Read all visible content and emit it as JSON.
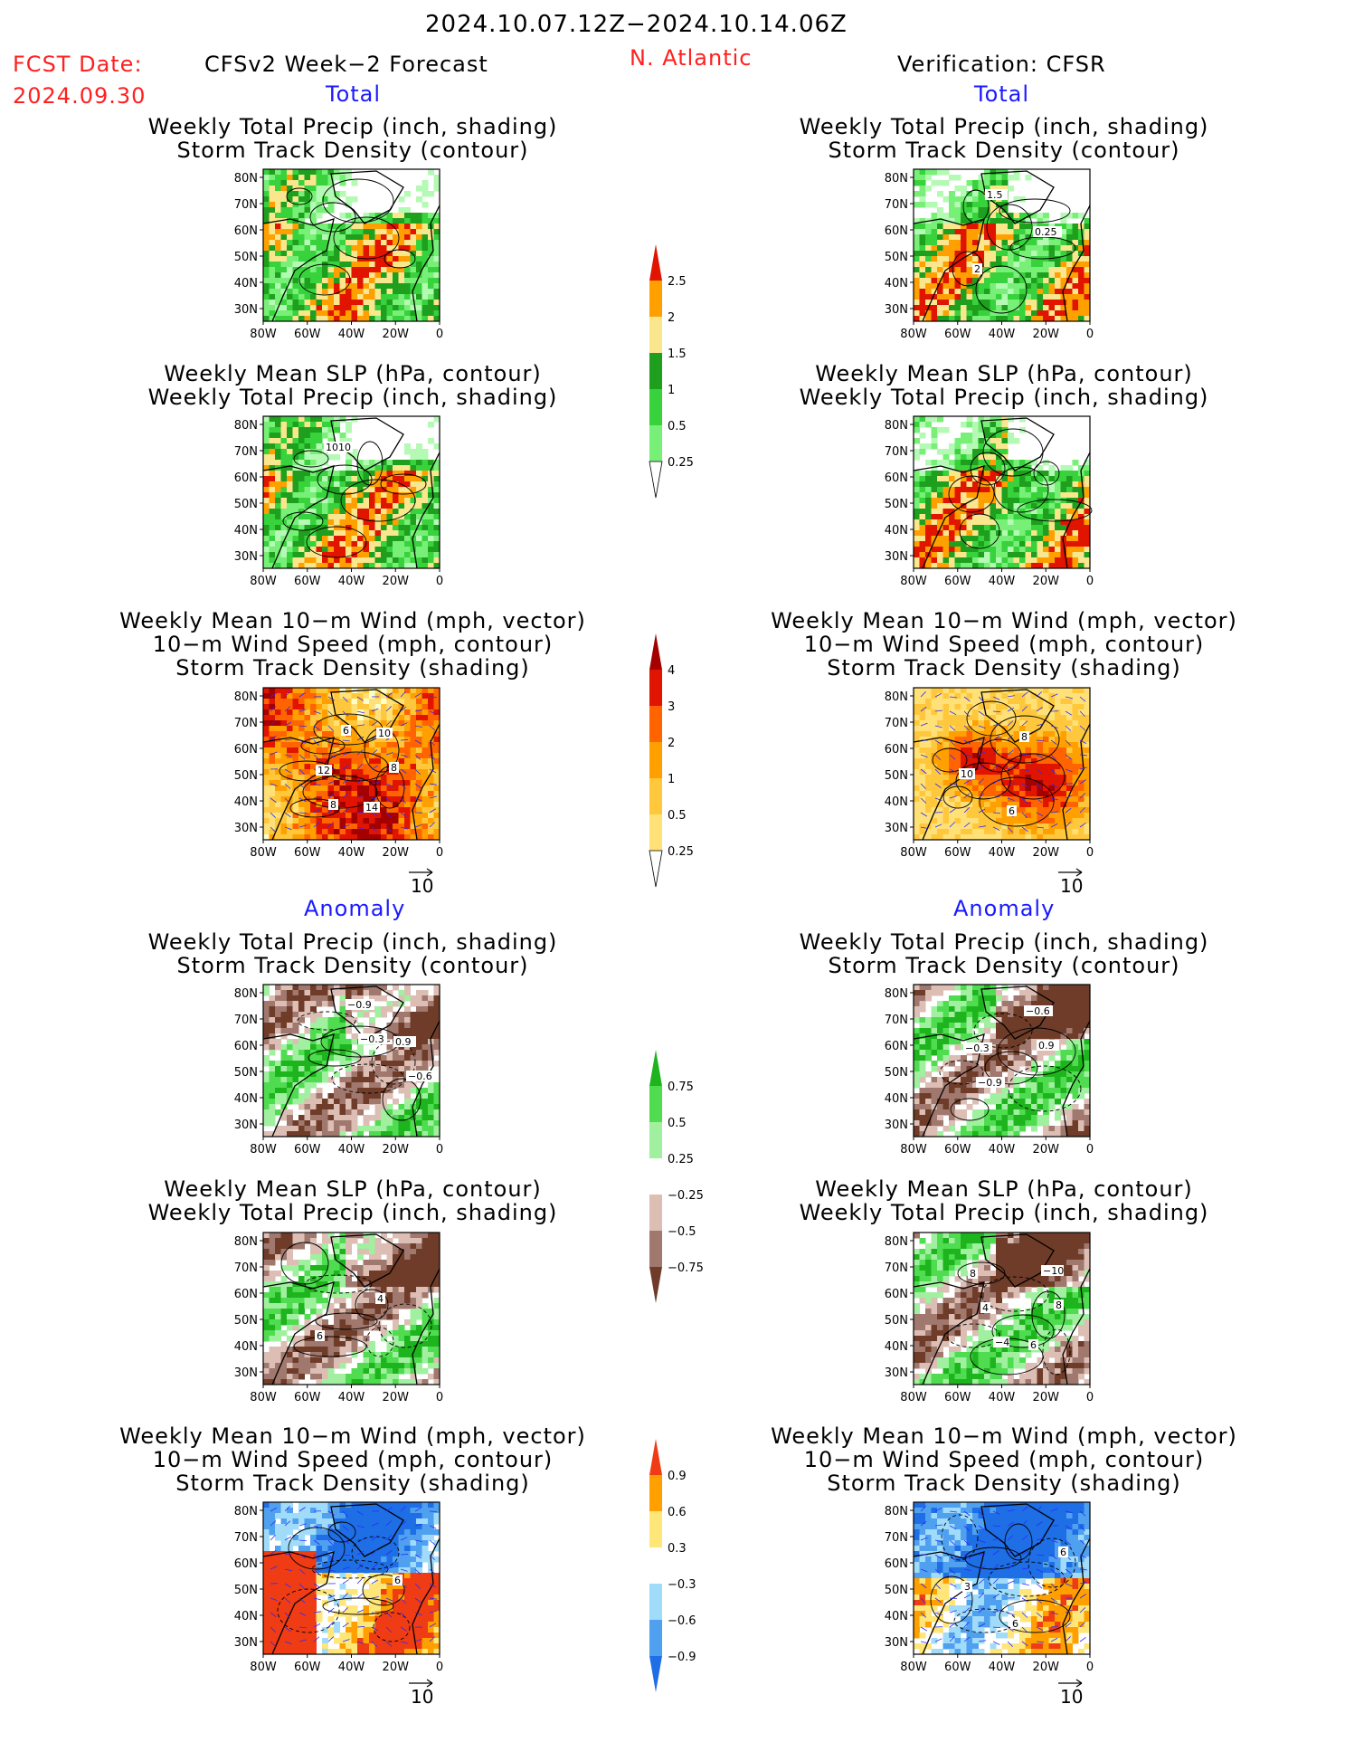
{
  "header": {
    "date_range": "2024.10.07.12Z−2024.10.14.06Z",
    "fcst_label": "FCST Date:",
    "fcst_date": "2024.09.30",
    "left_title": "CFSv2 Week−2 Forecast",
    "region": "N. Atlantic",
    "right_title": "Verification: CFSR"
  },
  "sections": {
    "total": "Total",
    "anomaly": "Anomaly"
  },
  "panel_titles": {
    "precip_storm": [
      "Weekly Total Precip (inch, shading)",
      "Storm Track Density (contour)"
    ],
    "slp_precip": [
      "Weekly Mean SLP (hPa, contour)",
      "Weekly Total Precip (inch, shading)"
    ],
    "wind_storm": [
      "Weekly Mean 10−m Wind (mph, vector)",
      "10−m Wind Speed (mph, contour)",
      "Storm Track Density (shading)"
    ]
  },
  "axes": {
    "lat_ticks": [
      "80N",
      "70N",
      "60N",
      "50N",
      "40N",
      "30N"
    ],
    "lon_ticks": [
      "80W",
      "60W",
      "40W",
      "20W",
      "0"
    ]
  },
  "vector_ref": "10",
  "colors": {
    "precip_scale": [
      "#b4fab4",
      "#78f078",
      "#37d23c",
      "#1ea01e",
      "#fae68c",
      "#ffa000",
      "#e11400"
    ],
    "storm_scale": [
      "#ffffc8",
      "#ffe178",
      "#ffc83c",
      "#ffa000",
      "#ff6400",
      "#e11400",
      "#a50000"
    ],
    "precip_anom_scale": [
      "#6e3c28",
      "#a0786e",
      "#dcbeb4",
      "#ffffff",
      "#a0f0a0",
      "#50dc50",
      "#1eb41e"
    ],
    "storm_anom_scale": [
      "#1e6ee6",
      "#50a0f0",
      "#a0dcfa",
      "#ffffff",
      "#ffe678",
      "#ffa000",
      "#f03c14"
    ]
  },
  "colorbars": [
    {
      "name": "total-precip-colorbar",
      "labels": [
        "0.25",
        "0.5",
        "1",
        "1.5",
        "2",
        "2.5"
      ]
    },
    {
      "name": "total-storm-density-colorbar",
      "labels": [
        "0.25",
        "0.5",
        "1",
        "2",
        "3",
        "4"
      ]
    },
    {
      "name": "anomaly-precip-colorbar",
      "labels": [
        "−0.75",
        "−0.5",
        "−0.25",
        "0.25",
        "0.5",
        "0.75"
      ]
    },
    {
      "name": "anomaly-storm-density-colorbar",
      "labels": [
        "−0.9",
        "−0.6",
        "−0.3",
        "0.3",
        "0.6",
        "0.9"
      ]
    }
  ],
  "contour_labels": {
    "fcst_slp_total": [
      "1010"
    ],
    "verif_storm_total": [
      "1.5",
      "0.25",
      "2"
    ],
    "fcst_wind_total": [
      "6",
      "8",
      "8",
      "10",
      "12",
      "14"
    ],
    "verif_wind_total": [
      "8",
      "10",
      "6"
    ],
    "fcst_precip_anom": [
      "−0.3",
      "−0.6",
      "−0.9",
      "0.9"
    ],
    "verif_precip_anom": [
      "0.9",
      "−0.9",
      "−0.6",
      "−0.3"
    ],
    "fcst_slp_anom": [
      "4",
      "6"
    ],
    "verif_slp_anom": [
      "8",
      "−4",
      "−10",
      "4",
      "6",
      "8"
    ],
    "fcst_wind_anom": [
      "6"
    ],
    "verif_wind_anom": [
      "3",
      "6",
      "6"
    ]
  },
  "chart_data": [
    {
      "type": "heatmap",
      "name": "fcst-total-precip-storm",
      "title": [
        "Weekly Total Precip (inch, shading)",
        "Storm Track Density (contour)"
      ],
      "lat_range": [
        25,
        85
      ],
      "lon_range": [
        -80,
        0
      ]
    },
    {
      "type": "heatmap",
      "name": "verif-total-precip-storm",
      "title": [
        "Weekly Total Precip (inch, shading)",
        "Storm Track Density (contour)"
      ],
      "lat_range": [
        25,
        85
      ],
      "lon_range": [
        -80,
        0
      ]
    },
    {
      "type": "heatmap",
      "name": "fcst-total-slp-precip",
      "title": [
        "Weekly Mean SLP (hPa, contour)",
        "Weekly Total Precip (inch, shading)"
      ],
      "lat_range": [
        25,
        85
      ],
      "lon_range": [
        -80,
        0
      ]
    },
    {
      "type": "heatmap",
      "name": "verif-total-slp-precip",
      "title": [
        "Weekly Mean SLP (hPa, contour)",
        "Weekly Total Precip (inch, shading)"
      ],
      "lat_range": [
        25,
        85
      ],
      "lon_range": [
        -80,
        0
      ]
    },
    {
      "type": "heatmap",
      "name": "fcst-total-wind-storm",
      "title": [
        "Weekly Mean 10−m Wind (mph, vector)",
        "10−m Wind Speed (mph, contour)",
        "Storm Track Density (shading)"
      ],
      "lat_range": [
        25,
        85
      ],
      "lon_range": [
        -80,
        0
      ]
    },
    {
      "type": "heatmap",
      "name": "verif-total-wind-storm",
      "title": [
        "Weekly Mean 10−m Wind (mph, vector)",
        "10−m Wind Speed (mph, contour)",
        "Storm Track Density (shading)"
      ],
      "lat_range": [
        25,
        85
      ],
      "lon_range": [
        -80,
        0
      ]
    },
    {
      "type": "heatmap",
      "name": "fcst-anom-precip-storm",
      "title": [
        "Weekly Total Precip (inch, shading)",
        "Storm Track Density (contour)"
      ],
      "lat_range": [
        25,
        85
      ],
      "lon_range": [
        -80,
        0
      ]
    },
    {
      "type": "heatmap",
      "name": "verif-anom-precip-storm",
      "title": [
        "Weekly Total Precip (inch, shading)",
        "Storm Track Density (contour)"
      ],
      "lat_range": [
        25,
        85
      ],
      "lon_range": [
        -80,
        0
      ]
    },
    {
      "type": "heatmap",
      "name": "fcst-anom-slp-precip",
      "title": [
        "Weekly Mean SLP (hPa, contour)",
        "Weekly Total Precip (inch, shading)"
      ],
      "lat_range": [
        25,
        85
      ],
      "lon_range": [
        -80,
        0
      ]
    },
    {
      "type": "heatmap",
      "name": "verif-anom-slp-precip",
      "title": [
        "Weekly Mean SLP (hPa, contour)",
        "Weekly Total Precip (inch, shading)"
      ],
      "lat_range": [
        25,
        85
      ],
      "lon_range": [
        -80,
        0
      ]
    },
    {
      "type": "heatmap",
      "name": "fcst-anom-wind-storm",
      "title": [
        "Weekly Mean 10−m Wind (mph, vector)",
        "10−m Wind Speed (mph, contour)",
        "Storm Track Density (shading)"
      ],
      "lat_range": [
        25,
        85
      ],
      "lon_range": [
        -80,
        0
      ]
    },
    {
      "type": "heatmap",
      "name": "verif-anom-wind-storm",
      "title": [
        "Weekly Mean 10−m Wind (mph, vector)",
        "10−m Wind Speed (mph, contour)",
        "Storm Track Density (shading)"
      ],
      "lat_range": [
        25,
        85
      ],
      "lon_range": [
        -80,
        0
      ]
    }
  ]
}
